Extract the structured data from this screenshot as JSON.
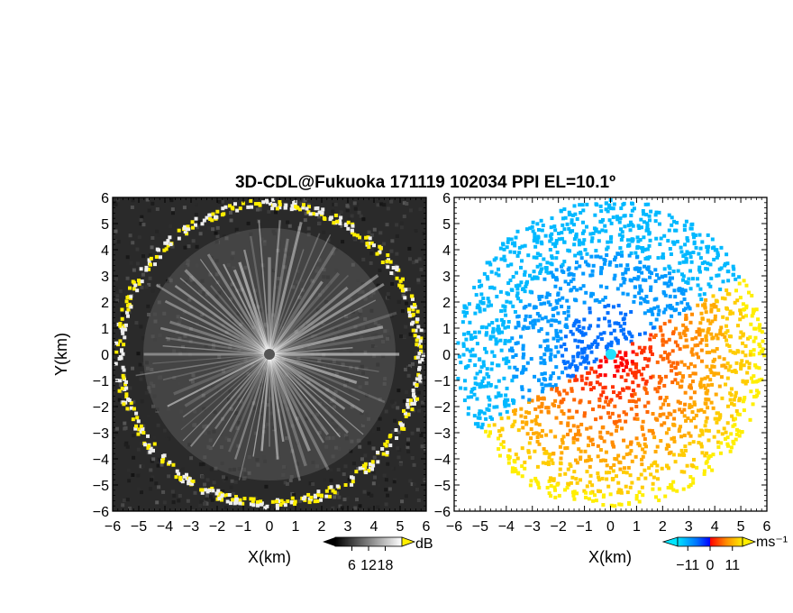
{
  "figure": {
    "title": "3D-CDL@Fukuoka 171119 102034 PPI EL=10.1º"
  },
  "chart_data": [
    {
      "type": "heatmap",
      "panel": "reflectivity",
      "xlabel": "X(km)",
      "ylabel": "Y(km)",
      "xlim": [
        -6,
        6
      ],
      "ylim": [
        -6,
        6
      ],
      "xticks": [
        "−6",
        "−5",
        "−4",
        "−3",
        "−2",
        "−1",
        "0",
        "1",
        "2",
        "3",
        "4",
        "5",
        "6"
      ],
      "yticks": [
        "−6",
        "−5",
        "−4",
        "−3",
        "−2",
        "−1",
        "0",
        "1",
        "2",
        "3",
        "4",
        "5",
        "6"
      ],
      "colorbar": {
        "unit": "dB",
        "ticks": [
          "6",
          "12",
          "18"
        ],
        "tick_values": [
          6,
          12,
          18
        ],
        "range": [
          0,
          24
        ],
        "colors": [
          "#000000",
          "#ffffff"
        ],
        "overflow_color": "#ffee00"
      },
      "radar_range_km": 5.8
    },
    {
      "type": "heatmap",
      "panel": "radial-velocity",
      "xlabel": "X(km)",
      "ylabel": "",
      "xlim": [
        -6,
        6
      ],
      "ylim": [
        -6,
        6
      ],
      "xticks": [
        "−6",
        "−5",
        "−4",
        "−3",
        "−2",
        "−1",
        "0",
        "1",
        "2",
        "3",
        "4",
        "5",
        "6"
      ],
      "colorbar": {
        "unit": "ms⁻¹",
        "ticks": [
          "−11",
          "0",
          "11"
        ],
        "tick_values": [
          -11,
          0,
          11
        ],
        "range": [
          -16,
          16
        ],
        "colors": [
          "#00e5ff",
          "#0070ff",
          "#0000ff",
          "#ff0000",
          "#ff8c00",
          "#ffee00"
        ]
      },
      "radar_range_km": 5.8
    }
  ]
}
